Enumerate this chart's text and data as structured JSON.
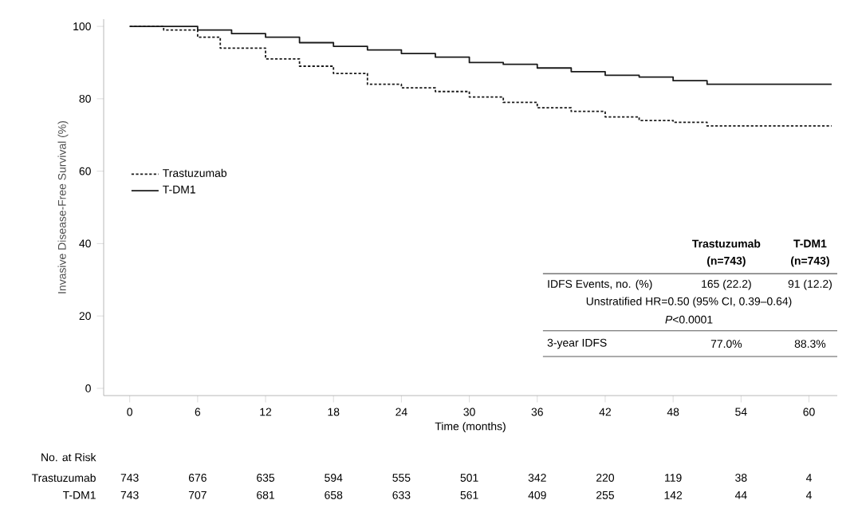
{
  "chart_data": {
    "type": "step",
    "xlabel": "Time (months)",
    "ylabel": "Invasive Disease-Free Survival (%)",
    "xlim": [
      -2.3,
      62.5
    ],
    "ylim": [
      -2,
      102
    ],
    "xticks": [
      0,
      6,
      12,
      18,
      24,
      30,
      36,
      42,
      48,
      54,
      60
    ],
    "yticks": [
      0,
      20,
      40,
      60,
      80,
      100
    ],
    "grid": false,
    "legend": "left",
    "marker": "none",
    "series": [
      {
        "name": "Trastuzumab",
        "color": "#1a1a1a",
        "line_style": "dashed",
        "x": [
          0,
          3,
          6,
          8,
          12,
          15,
          18,
          21,
          24,
          27,
          30,
          33,
          36,
          39,
          42,
          45,
          48,
          51,
          62
        ],
        "values": [
          100,
          99,
          97,
          94,
          91,
          89,
          87,
          84,
          83,
          82,
          80.5,
          79,
          77.5,
          76.5,
          75,
          74,
          73.5,
          72.5,
          72.5
        ]
      },
      {
        "name": "T-DM1",
        "color": "#1a1a1a",
        "line_style": "solid",
        "x": [
          0,
          6,
          9,
          12,
          15,
          18,
          21,
          24,
          27,
          30,
          33,
          36,
          39,
          42,
          45,
          48,
          51,
          62
        ],
        "values": [
          100,
          99,
          98,
          97,
          95.5,
          94.5,
          93.5,
          92.5,
          91.5,
          90,
          89.5,
          88.5,
          87.5,
          86.5,
          86,
          85,
          84,
          84
        ]
      }
    ],
    "annotations": [
      "Trastuzumab",
      "T-DM1",
      "(n=743)",
      "(n=743)",
      "IDFS Events, no. (%)",
      "165 (22.2)",
      "91 (12.2)",
      "Unstratified HR=0.50 (95% CI, 0.39–0.64)",
      "*P*<0.0001",
      "3-year IDFS",
      "77.0%",
      "88.3%",
      "No. at Risk",
      "Trastuzumab",
      "743",
      "676",
      "635",
      "594",
      "555",
      "501",
      "342",
      "220",
      "119",
      "38",
      "4",
      "T-DM1",
      "743",
      "707",
      "681",
      "658",
      "633",
      "561",
      "409",
      "255",
      "142",
      "44",
      "4"
    ]
  }
}
